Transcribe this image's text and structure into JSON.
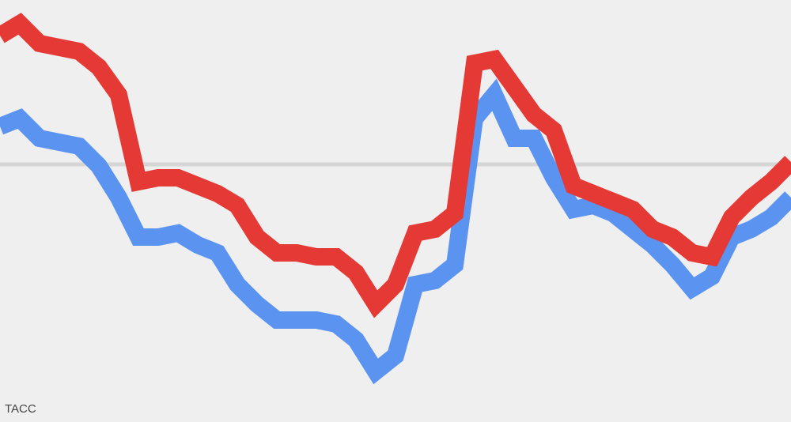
{
  "chart_data": {
    "type": "line",
    "source": "TACC",
    "categories": [
      null,
      null,
      null,
      null,
      null,
      null,
      null,
      null,
      null,
      null,
      null,
      null,
      null,
      null,
      null,
      null,
      null,
      null,
      null,
      null,
      null,
      null,
      null,
      null,
      null,
      null,
      null,
      null,
      null,
      null,
      null,
      null,
      null,
      null,
      null,
      null,
      null,
      null,
      null,
      null,
      null
    ],
    "ylim": [
      0,
      100
    ],
    "reference_line": 58.4,
    "reference_color": "#d6d6d6",
    "series": [
      {
        "color": "#5b93f0",
        "values": [
          68,
          70,
          65,
          64,
          63,
          58,
          50,
          40,
          40,
          41,
          38,
          36,
          28,
          23,
          19,
          19,
          19,
          18,
          14,
          6,
          10,
          28,
          29,
          33,
          70,
          76,
          65,
          65,
          55,
          47,
          48,
          46,
          42,
          38,
          33,
          27,
          30,
          40,
          42,
          45,
          50
        ]
      },
      {
        "color": "#e53935",
        "values": [
          91,
          94,
          89,
          88,
          87,
          83,
          76,
          54,
          55,
          55,
          53,
          51,
          48,
          40,
          36,
          36,
          35,
          35,
          31,
          23,
          28,
          41,
          42,
          46,
          84,
          85,
          78,
          71,
          67,
          53,
          51,
          49,
          47,
          42,
          40,
          36,
          35,
          45,
          50,
          54,
          59
        ]
      }
    ]
  }
}
